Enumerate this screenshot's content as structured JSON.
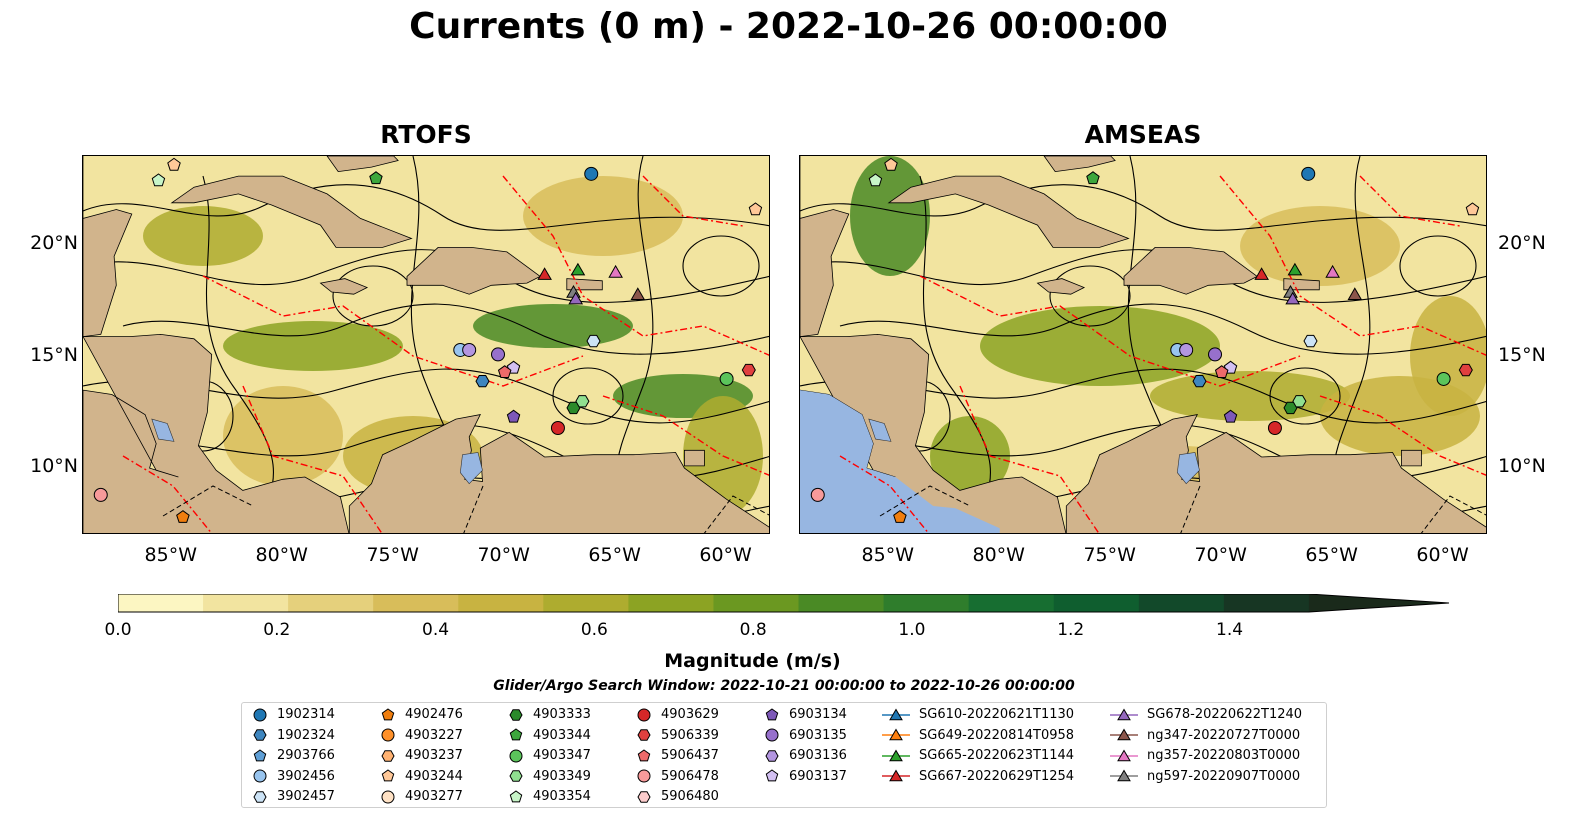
{
  "title": "Currents (0 m) - 2022-10-26 00:00:00",
  "panels": [
    {
      "title": "RTOFS",
      "id": "rtofs"
    },
    {
      "title": "AMSEAS",
      "id": "amseas"
    }
  ],
  "axes": {
    "lon_labels": [
      "85°W",
      "80°W",
      "75°W",
      "70°W",
      "65°W",
      "60°W"
    ],
    "lat_labels": [
      "20°N",
      "15°N",
      "10°N"
    ]
  },
  "colorbar": {
    "label": "Magnitude (m/s)",
    "tick_labels": [
      "0.0",
      "0.2",
      "0.4",
      "0.6",
      "0.8",
      "1.0",
      "1.2",
      "1.4"
    ],
    "range": [
      0.0,
      1.5
    ],
    "extend": "max",
    "colors": [
      "#fcf6c2",
      "#f2e4a0",
      "#e5d07c",
      "#d8bd5a",
      "#c8b341",
      "#aeac2f",
      "#8ca323",
      "#6b9821",
      "#4a8a25",
      "#2f7d2c",
      "#176e31",
      "#0f5e2f",
      "#12492a",
      "#173623",
      "#1a2a1b"
    ]
  },
  "search_window": "Glider/Argo Search Window: 2022-10-21 00:00:00 to 2022-10-26 00:00:00",
  "legend": {
    "columns": [
      [
        {
          "label": "1902314",
          "marker": "circle",
          "color": "#1f77b4"
        },
        {
          "label": "1902324",
          "marker": "hexagon",
          "color": "#3e86bf"
        },
        {
          "label": "2903766",
          "marker": "pentagon",
          "color": "#5f9fd6"
        },
        {
          "label": "3902456",
          "marker": "circle",
          "color": "#98c4ee"
        },
        {
          "label": "3902457",
          "marker": "hexagon",
          "color": "#cce3f6"
        }
      ],
      [
        {
          "label": "4902476",
          "marker": "pentagon",
          "color": "#f07e0e"
        },
        {
          "label": "4903227",
          "marker": "circle",
          "color": "#ff912a"
        },
        {
          "label": "4903237",
          "marker": "hexagon",
          "color": "#ffb272"
        },
        {
          "label": "4903244",
          "marker": "pentagon",
          "color": "#ffc898"
        },
        {
          "label": "4903277",
          "marker": "circle",
          "color": "#ffe2c5"
        }
      ],
      [
        {
          "label": "4903333",
          "marker": "hexagon",
          "color": "#2b8a2b"
        },
        {
          "label": "4903344",
          "marker": "pentagon",
          "color": "#3da73d"
        },
        {
          "label": "4903347",
          "marker": "circle",
          "color": "#5bc45b"
        },
        {
          "label": "4903349",
          "marker": "hexagon",
          "color": "#90df90"
        },
        {
          "label": "4903354",
          "marker": "pentagon",
          "color": "#c8f5c8"
        }
      ],
      [
        {
          "label": "4903629",
          "marker": "circle",
          "color": "#d62728"
        },
        {
          "label": "5906339",
          "marker": "hexagon",
          "color": "#e0403f"
        },
        {
          "label": "5906437",
          "marker": "pentagon",
          "color": "#ee6a6a"
        },
        {
          "label": "5906478",
          "marker": "circle",
          "color": "#f79a9a"
        },
        {
          "label": "5906480",
          "marker": "hexagon",
          "color": "#fccccc"
        }
      ],
      [
        {
          "label": "6903134",
          "marker": "pentagon",
          "color": "#7d58b8"
        },
        {
          "label": "6903135",
          "marker": "circle",
          "color": "#9770cc"
        },
        {
          "label": "6903136",
          "marker": "hexagon",
          "color": "#b396e0"
        },
        {
          "label": "6903137",
          "marker": "pentagon",
          "color": "#d3c0f2"
        }
      ],
      [
        {
          "label": "SG610-20220621T1130",
          "marker": "triangle",
          "color": "#1f77b4"
        },
        {
          "label": "SG649-20220814T0958",
          "marker": "triangle",
          "color": "#ff7f0e"
        },
        {
          "label": "SG665-20220623T1144",
          "marker": "triangle",
          "color": "#2ca02c"
        },
        {
          "label": "SG667-20220629T1254",
          "marker": "triangle",
          "color": "#d62728"
        }
      ],
      [
        {
          "label": "SG678-20220622T1240",
          "marker": "triangle",
          "color": "#9467bd"
        },
        {
          "label": "ng347-20220727T0000",
          "marker": "triangle",
          "color": "#8c564b"
        },
        {
          "label": "ng357-20220803T0000",
          "marker": "triangle",
          "color": "#e377c2"
        },
        {
          "label": "ng597-20220907T0000",
          "marker": "triangle",
          "color": "#7f7f7f"
        }
      ]
    ]
  },
  "map": {
    "lon_range": [
      -89,
      -58
    ],
    "lat_range": [
      7,
      24
    ],
    "land_color": "#d1b48c",
    "lake_color": "#97b6e1",
    "eez_color": "#ff0000",
    "streamline_color": "#000000"
  }
}
